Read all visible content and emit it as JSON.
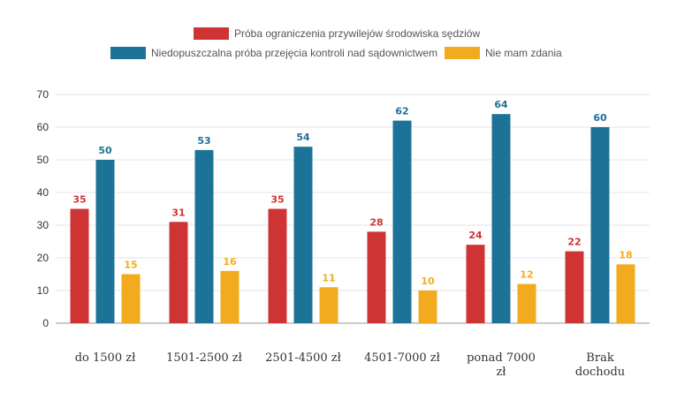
{
  "chart_data": {
    "type": "bar",
    "categories": [
      [
        "do 1500 zł"
      ],
      [
        "1501-2500 zł"
      ],
      [
        "2501-4500 zł"
      ],
      [
        "4501-7000 zł"
      ],
      [
        "ponad 7000",
        "zł"
      ],
      [
        "Brak",
        "dochodu"
      ]
    ],
    "series": [
      {
        "name": "Próba ograniczenia przywilejów środowiska sędziów",
        "color": "#cf3434",
        "values": [
          35,
          31,
          35,
          28,
          24,
          22
        ]
      },
      {
        "name": "Niedopuszczalna próba przejęcia kontroli nad sądownictwem",
        "color": "#1d7297",
        "values": [
          50,
          53,
          54,
          62,
          64,
          60
        ]
      },
      {
        "name": "Nie mam zdania",
        "color": "#f2ab1e",
        "values": [
          15,
          16,
          11,
          10,
          12,
          18
        ]
      }
    ],
    "ylim": [
      0,
      70
    ],
    "yticks": [
      0,
      10,
      20,
      30,
      40,
      50,
      60,
      70
    ],
    "grid": true,
    "legend_position": "top-center",
    "data_labels": true
  }
}
